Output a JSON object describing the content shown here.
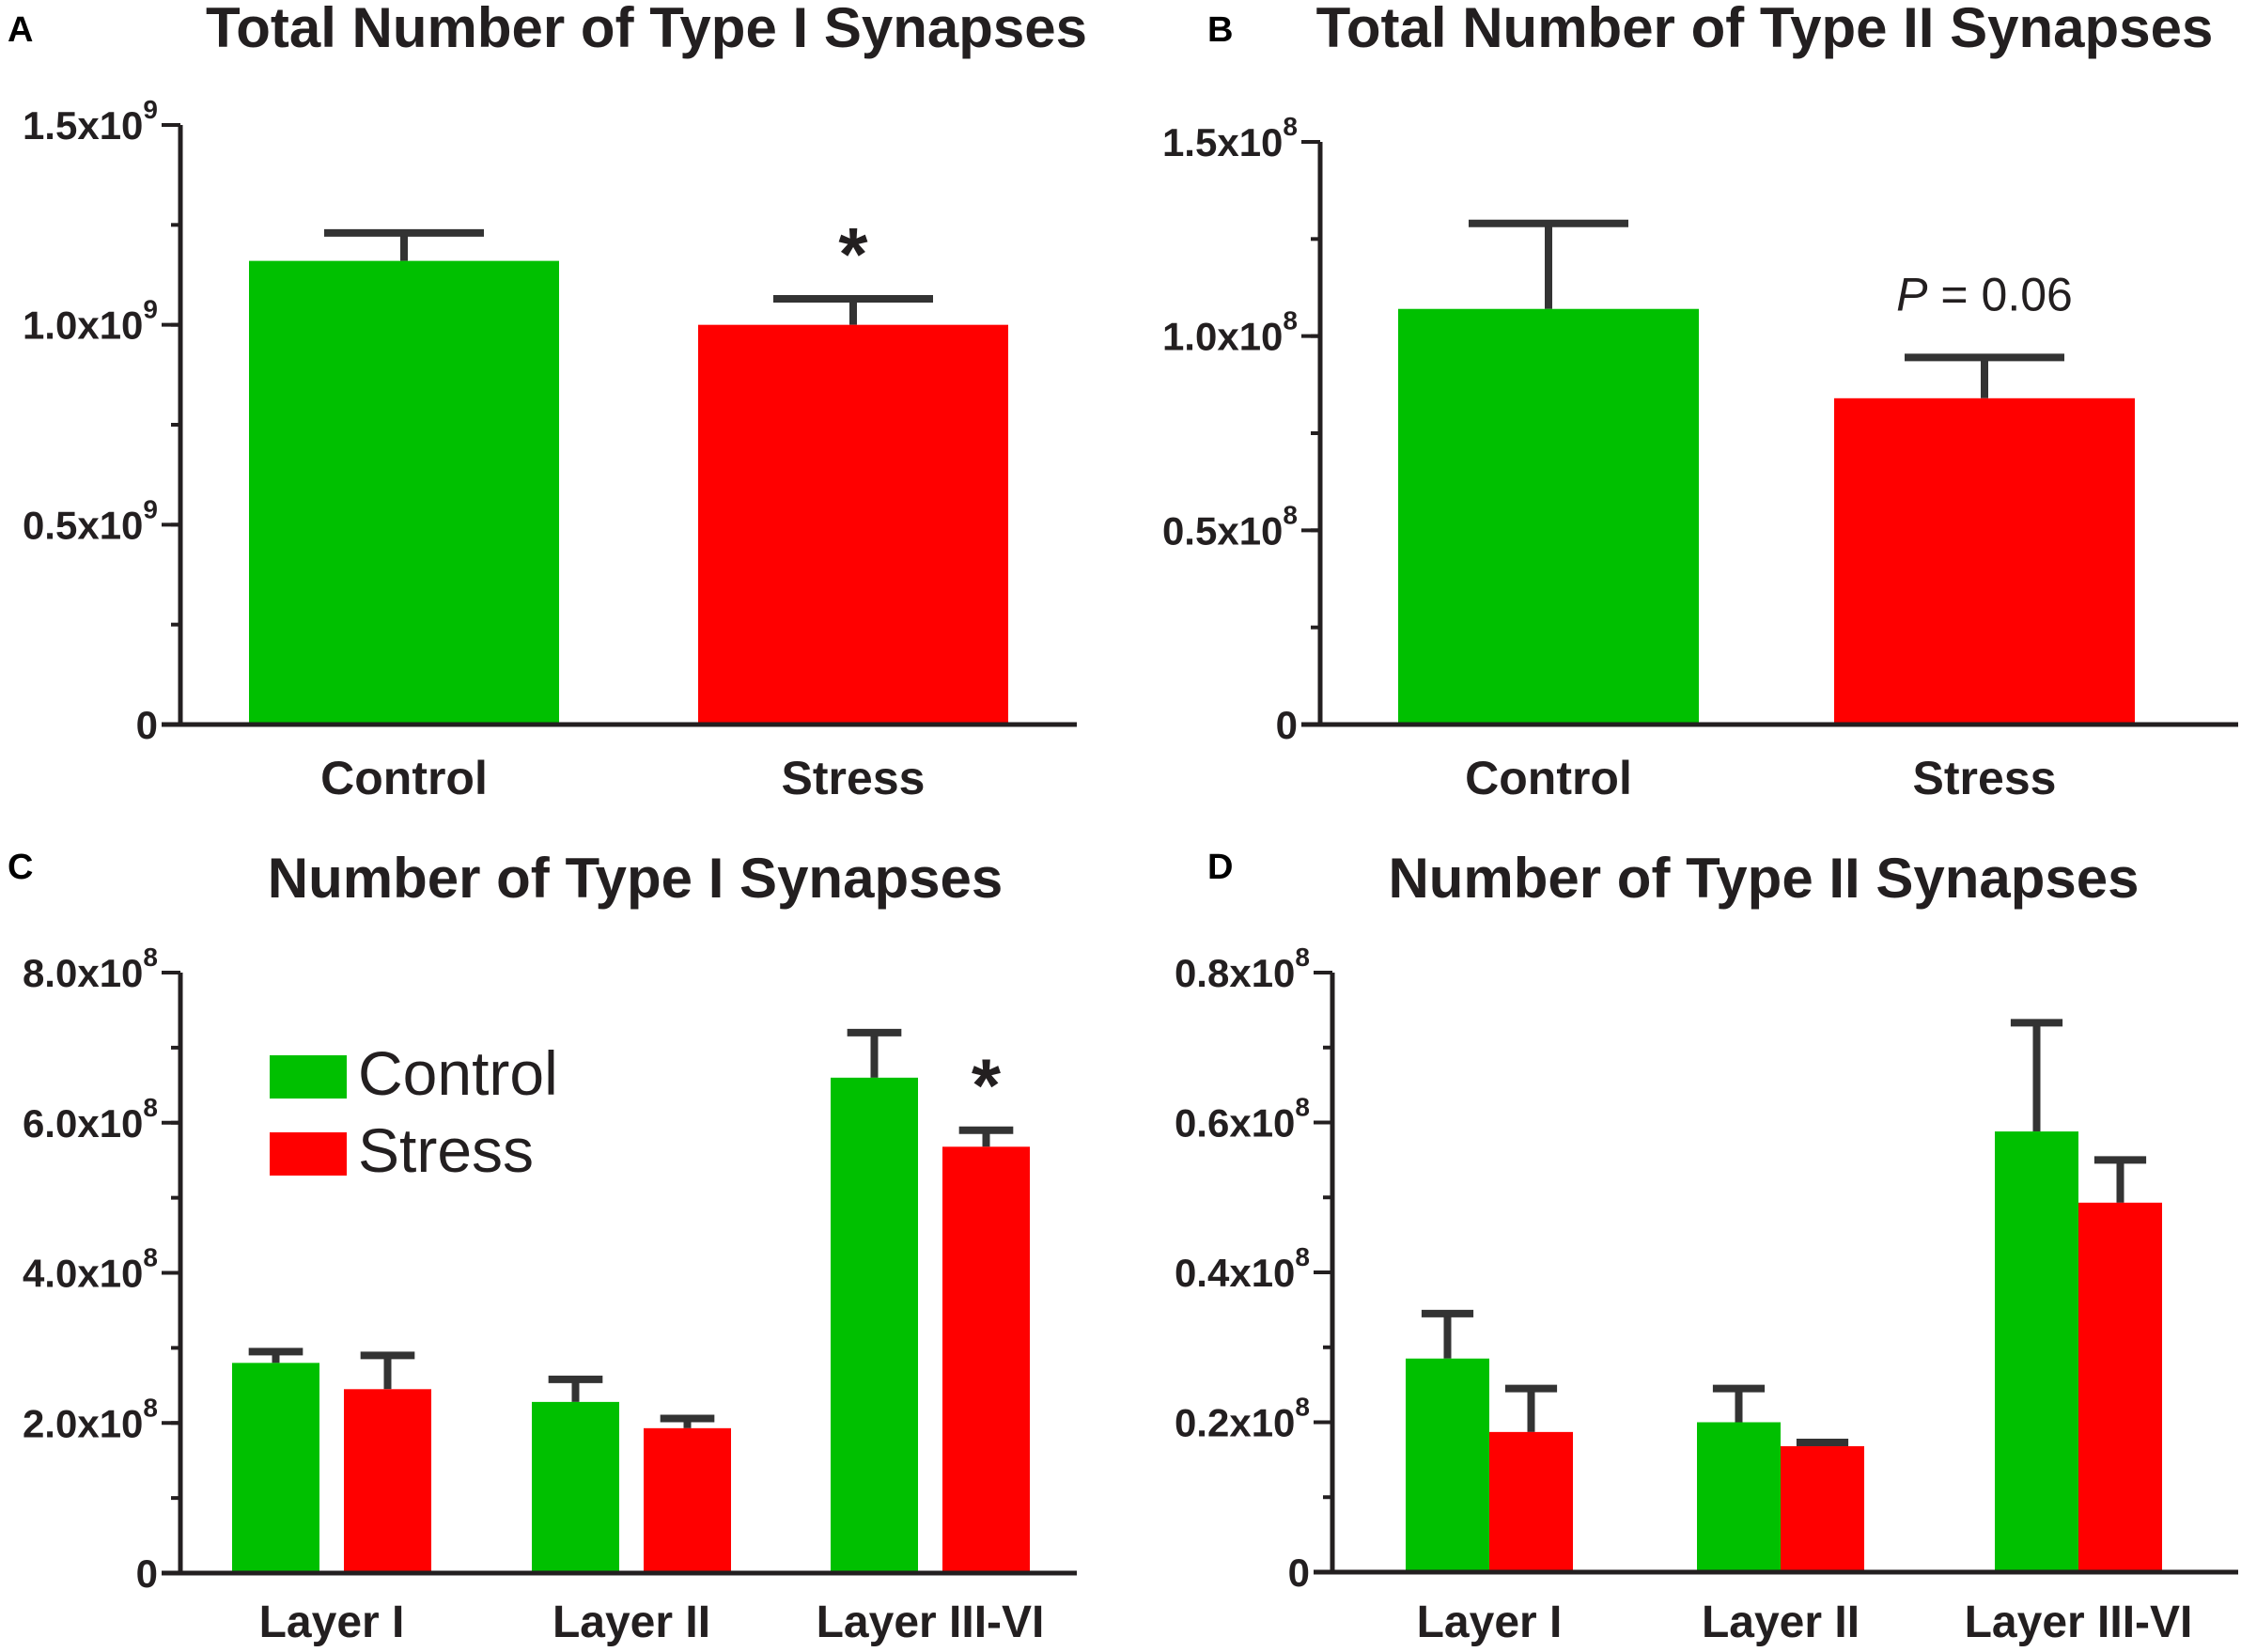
{
  "colors": {
    "control": "#00c000",
    "stress": "#ff0000",
    "axis": "#231f20",
    "error": "#333333"
  },
  "chart_data": [
    {
      "panel": "A",
      "type": "bar",
      "title": "Total Number of Type I Synapses",
      "categories": [
        "Control",
        "Stress"
      ],
      "values": [
        1160000000.0,
        1000000000.0
      ],
      "errors": [
        70000000.0,
        65000000.0
      ],
      "ylim": [
        0,
        1500000000.0
      ],
      "yticks": [
        0,
        500000000.0,
        1000000000.0,
        1500000000.0
      ],
      "minor_step": 250000000.0,
      "ytick_labels": [
        {
          "base": "0",
          "exp": ""
        },
        {
          "base": "0.5x10",
          "exp": "9"
        },
        {
          "base": "1.0x10",
          "exp": "9"
        },
        {
          "base": "1.5x10",
          "exp": "9"
        }
      ],
      "annotations": [
        {
          "text": "*",
          "category": 1
        }
      ]
    },
    {
      "panel": "B",
      "type": "bar",
      "title": "Total Number of Type II Synapses",
      "categories": [
        "Control",
        "Stress"
      ],
      "values": [
        107000000.0,
        84000000.0
      ],
      "errors": [
        22000000.0,
        10500000.0
      ],
      "ylim": [
        0,
        150000000.0
      ],
      "yticks": [
        0,
        50000000.0,
        100000000.0,
        150000000.0
      ],
      "minor_step": 25000000.0,
      "ytick_labels": [
        {
          "base": "0",
          "exp": ""
        },
        {
          "base": "0.5x10",
          "exp": "8"
        },
        {
          "base": "1.0x10",
          "exp": "8"
        },
        {
          "base": "1.5x10",
          "exp": "8"
        }
      ],
      "annotations": [
        {
          "italic": "P",
          "text": " = 0.06",
          "category": 1
        }
      ]
    },
    {
      "panel": "C",
      "type": "bar",
      "title": "Number of Type I Synapses",
      "categories": [
        "Layer I",
        "Layer II",
        "Layer III-VI"
      ],
      "series": [
        {
          "name": "Control",
          "values": [
            280000000.0,
            228000000.0,
            660000000.0
          ],
          "errors": [
            15000000.0,
            30000000.0,
            60000000.0
          ]
        },
        {
          "name": "Stress",
          "values": [
            245000000.0,
            193000000.0,
            568000000.0
          ],
          "errors": [
            45000000.0,
            13000000.0,
            22000000.0
          ]
        }
      ],
      "ylim": [
        0,
        800000000.0
      ],
      "yticks": [
        0,
        200000000.0,
        400000000.0,
        600000000.0,
        800000000.0
      ],
      "minor_step": 100000000.0,
      "ytick_labels": [
        {
          "base": "0",
          "exp": ""
        },
        {
          "base": "2.0x10",
          "exp": "8"
        },
        {
          "base": "4.0x10",
          "exp": "8"
        },
        {
          "base": "6.0x10",
          "exp": "8"
        },
        {
          "base": "8.0x10",
          "exp": "8"
        }
      ],
      "legend": [
        "Control",
        "Stress"
      ],
      "annotations": [
        {
          "text": "*",
          "category": 2,
          "series": 1
        }
      ]
    },
    {
      "panel": "D",
      "type": "bar",
      "title": "Number of Type II Synapses",
      "categories": [
        "Layer I",
        "Layer II",
        "Layer III-VI"
      ],
      "series": [
        {
          "name": "Control",
          "values": [
            28500000.0,
            20000000.0,
            58800000.0
          ],
          "errors": [
            6000000.0,
            4500000.0,
            14500000.0
          ]
        },
        {
          "name": "Stress",
          "values": [
            18700000.0,
            16800000.0,
            49300000.0
          ],
          "errors": [
            5800000.0,
            500000.0,
            5700000.0
          ]
        }
      ],
      "ylim": [
        0,
        80000000.0
      ],
      "yticks": [
        0,
        20000000.0,
        40000000.0,
        60000000.0,
        80000000.0
      ],
      "minor_step": 10000000.0,
      "ytick_labels": [
        {
          "base": "0",
          "exp": ""
        },
        {
          "base": "0.2x10",
          "exp": "8"
        },
        {
          "base": "0.4x10",
          "exp": "8"
        },
        {
          "base": "0.6x10",
          "exp": "8"
        },
        {
          "base": "0.8x10",
          "exp": "8"
        }
      ],
      "annotations": []
    }
  ]
}
